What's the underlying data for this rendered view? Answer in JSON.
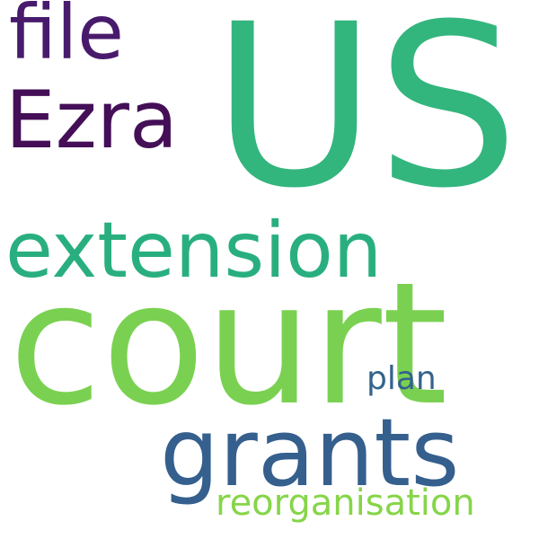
{
  "words": [
    {
      "text": "US",
      "color": "#33b57e"
    },
    {
      "text": "court",
      "color": "#7ad151"
    },
    {
      "text": "file",
      "color": "#481a6c"
    },
    {
      "text": "Ezra",
      "color": "#440f57"
    },
    {
      "text": "extension",
      "color": "#29af7f"
    },
    {
      "text": "grants",
      "color": "#355f8d"
    },
    {
      "text": "plan",
      "color": "#33638d"
    },
    {
      "text": "reorganisation",
      "color": "#86d549"
    }
  ]
}
